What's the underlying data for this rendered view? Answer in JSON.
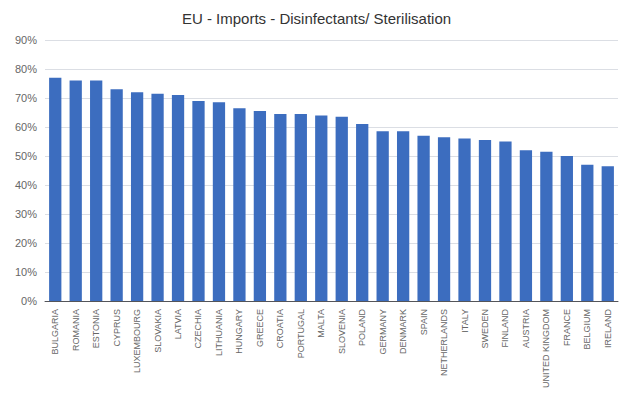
{
  "chart_data": {
    "type": "bar",
    "title": "EU - Imports - Disinfectants/ Sterilisation",
    "categories": [
      "BULGARIA",
      "ROMANIA",
      "ESTONIA",
      "CYPRUS",
      "LUXEMBOURG",
      "SLOVAKIA",
      "LATVIA",
      "CZECHIA",
      "LITHUANIA",
      "HUNGARY",
      "GREECE",
      "CROATIA",
      "PORTUGAL",
      "MALTA",
      "SLOVENIA",
      "POLAND",
      "GERMANY",
      "DENMARK",
      "SPAIN",
      "NETHERLANDS",
      "ITALY",
      "SWEDEN",
      "FINLAND",
      "AUSTRIA",
      "UNITED KINGDOM",
      "FRANCE",
      "BELGIUM",
      "IRELAND"
    ],
    "values": [
      77,
      76,
      76,
      73,
      72,
      71.5,
      71,
      69,
      68.5,
      66.5,
      65.5,
      64.5,
      64.5,
      64,
      63.5,
      61,
      58.5,
      58.5,
      57,
      56.5,
      56,
      55.5,
      55,
      52,
      51.5,
      50,
      47,
      46.5
    ],
    "color": "#3c6dbf",
    "ylim": [
      0,
      90
    ],
    "yticks": [
      {
        "value": 0,
        "label": "0%"
      },
      {
        "value": 10,
        "label": "10%"
      },
      {
        "value": 20,
        "label": "20%"
      },
      {
        "value": 30,
        "label": "30%"
      },
      {
        "value": 40,
        "label": "40%"
      },
      {
        "value": 50,
        "label": "50%"
      },
      {
        "value": 60,
        "label": "60%"
      },
      {
        "value": 70,
        "label": "70%"
      },
      {
        "value": 80,
        "label": "80%"
      },
      {
        "value": 90,
        "label": "90%"
      }
    ],
    "grid": true
  }
}
